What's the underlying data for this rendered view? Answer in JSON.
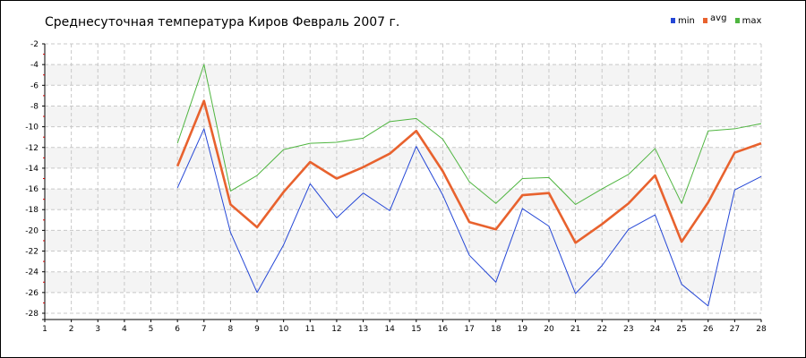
{
  "chart_data": {
    "type": "line",
    "title": "Среднесуточная температура Киров  Февраль 2007 г.",
    "xlabel": "",
    "ylabel": "",
    "x": [
      1,
      2,
      3,
      4,
      5,
      6,
      7,
      8,
      9,
      10,
      11,
      12,
      13,
      14,
      15,
      16,
      17,
      18,
      19,
      20,
      21,
      22,
      23,
      24,
      25,
      26,
      27,
      28
    ],
    "xlim": [
      1,
      28
    ],
    "ylim": [
      -28,
      -2
    ],
    "y_ticks": [
      -2,
      -4,
      -6,
      -8,
      -10,
      -12,
      -14,
      -16,
      -18,
      -20,
      -22,
      -24,
      -26,
      -28
    ],
    "grid": true,
    "legend_position": "top-right",
    "series": [
      {
        "name": "min",
        "color": "#2547d6",
        "values": [
          null,
          null,
          null,
          null,
          null,
          -15.9,
          -10.2,
          -20.2,
          -26.0,
          -21.4,
          -15.5,
          -18.8,
          -16.4,
          -18.1,
          -11.9,
          -16.6,
          -22.4,
          -25.0,
          -17.9,
          -19.6,
          -26.1,
          -23.4,
          -19.9,
          -18.5,
          -25.2,
          -27.3,
          -16.1,
          -14.8
        ]
      },
      {
        "name": "avg",
        "color": "#e8622e",
        "values": [
          null,
          null,
          null,
          null,
          null,
          -13.8,
          -7.5,
          -17.5,
          -19.7,
          -16.3,
          -13.4,
          -15.0,
          -13.9,
          -12.6,
          -10.4,
          -14.3,
          -19.2,
          -19.9,
          -16.6,
          -16.4,
          -21.2,
          -19.4,
          -17.4,
          -14.7,
          -21.1,
          -17.3,
          -12.5,
          -11.6
        ]
      },
      {
        "name": "max",
        "color": "#4fb540",
        "values": [
          null,
          null,
          null,
          null,
          null,
          -11.6,
          -4.0,
          -16.2,
          -14.7,
          -12.2,
          -11.6,
          -11.5,
          -11.1,
          -9.5,
          -9.2,
          -11.2,
          -15.3,
          -17.4,
          -15.0,
          -14.9,
          -17.5,
          -16.0,
          -14.6,
          -12.1,
          -17.4,
          -10.4,
          -10.2,
          -9.7
        ]
      }
    ]
  }
}
